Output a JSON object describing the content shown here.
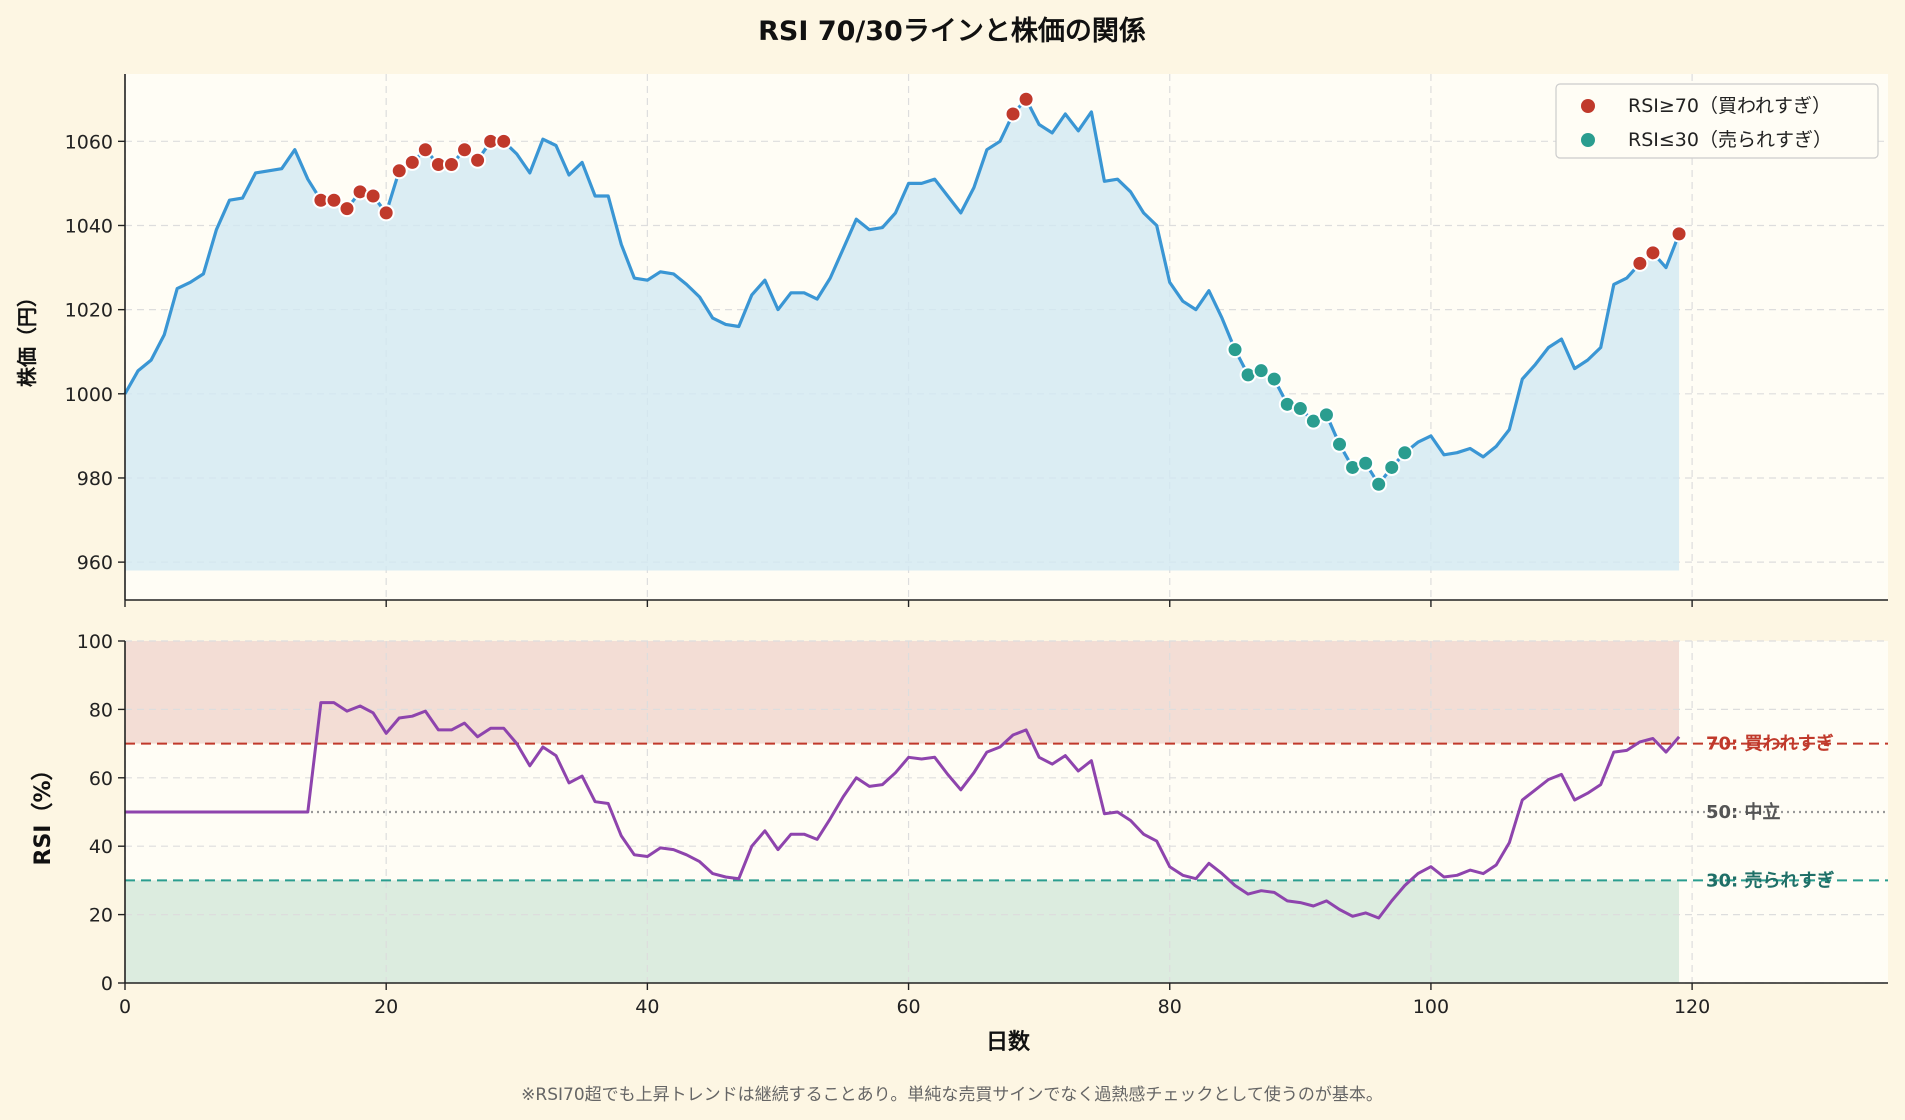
{
  "title": "RSI 70/30ラインと株価の関係",
  "footnote": "※RSI70超でも上昇トレンドは継続することあり。単純な売買サインでなく過熱感チェックとして使うのが基本。",
  "colors": {
    "background": "#fdf6e3",
    "plot_bg": "#fffdf5",
    "price_line": "#3a96d4",
    "price_fill": "#d2e8f2",
    "overbought": "#c0392b",
    "oversold": "#2a9d8f",
    "rsi_line": "#8e44ad",
    "neutral": "#999999",
    "overbought_zone": "#f3ddd5",
    "oversold_zone": "#dcecdf"
  },
  "chart_data": [
    {
      "type": "line",
      "ylabel": "株価（円）",
      "xlim": [
        0,
        135
      ],
      "ylim": [
        951,
        1076
      ],
      "yticks": [
        960,
        980,
        1000,
        1020,
        1040,
        1060
      ],
      "xticks": [
        0,
        20,
        40,
        60,
        80,
        100,
        120
      ],
      "grid": true,
      "fill_baseline": 958,
      "legend": {
        "position": "top-right",
        "entries": [
          "RSI≥70（買われすぎ）",
          "RSI≤30（売られすぎ）"
        ]
      },
      "series": [
        {
          "name": "株価",
          "x_start": 0,
          "values": [
            1000,
            1005.5,
            1008,
            1014,
            1025,
            1026.5,
            1028.5,
            1039,
            1046,
            1046.5,
            1052.5,
            1053,
            1053.5,
            1058,
            1051,
            1046,
            1046,
            1044,
            1048,
            1047,
            1043,
            1053,
            1055,
            1058,
            1054.5,
            1054.5,
            1058,
            1055.5,
            1060,
            1060,
            1057,
            1052.5,
            1060.5,
            1059,
            1052,
            1055,
            1047,
            1047,
            1035.5,
            1027.5,
            1027,
            1029,
            1028.5,
            1026,
            1023,
            1018,
            1016.5,
            1016,
            1023.5,
            1027,
            1020,
            1024,
            1024,
            1022.5,
            1027.5,
            1034.5,
            1041.5,
            1039,
            1039.5,
            1043,
            1050,
            1050,
            1051,
            1047,
            1043,
            1049,
            1058,
            1060,
            1066.5,
            1070,
            1064,
            1062,
            1066.5,
            1062.5,
            1067,
            1050.5,
            1051,
            1048,
            1043,
            1040,
            1026.5,
            1022,
            1020,
            1024.5,
            1018,
            1010.5,
            1004.5,
            1005.5,
            1003.5,
            997.5,
            996.5,
            993.5,
            995,
            988,
            982.5,
            983.5,
            978.5,
            982.5,
            986,
            988.5,
            990,
            985.5,
            986,
            987,
            985,
            987.5,
            991.5,
            1003.5,
            1007,
            1011,
            1013,
            1006,
            1008,
            1011,
            1026,
            1027.5,
            1031,
            1033.5,
            1030,
            1038
          ]
        },
        {
          "name": "RSI≥70（買われすぎ）",
          "points": [
            [
              15,
              1046
            ],
            [
              16,
              1046
            ],
            [
              17,
              1044
            ],
            [
              18,
              1048
            ],
            [
              19,
              1047
            ],
            [
              20,
              1043
            ],
            [
              21,
              1053
            ],
            [
              22,
              1055
            ],
            [
              23,
              1058
            ],
            [
              24,
              1054.5
            ],
            [
              25,
              1054.5
            ],
            [
              26,
              1058
            ],
            [
              27,
              1055.5
            ],
            [
              28,
              1060
            ],
            [
              29,
              1060
            ],
            [
              68,
              1066.5
            ],
            [
              69,
              1070
            ],
            [
              116,
              1031
            ],
            [
              117,
              1033.5
            ],
            [
              119,
              1038
            ]
          ]
        },
        {
          "name": "RSI≤30（売られすぎ）",
          "points": [
            [
              85,
              1010.5
            ],
            [
              86,
              1004.5
            ],
            [
              87,
              1005.5
            ],
            [
              88,
              1003.5
            ],
            [
              89,
              997.5
            ],
            [
              90,
              996.5
            ],
            [
              91,
              993.5
            ],
            [
              92,
              995
            ],
            [
              93,
              988
            ],
            [
              94,
              982.5
            ],
            [
              95,
              983.5
            ],
            [
              96,
              978.5
            ],
            [
              97,
              982.5
            ],
            [
              98,
              986
            ]
          ]
        }
      ]
    },
    {
      "type": "line",
      "xlabel": "日数",
      "ylabel": "RSI（%）",
      "xlim": [
        0,
        135
      ],
      "ylim": [
        0,
        100
      ],
      "yticks": [
        0,
        20,
        40,
        60,
        80,
        100
      ],
      "xticks": [
        0,
        20,
        40,
        60,
        80,
        100,
        120
      ],
      "grid": true,
      "zones": {
        "overbought": [
          70,
          100
        ],
        "oversold": [
          0,
          30
        ],
        "x_end": 119
      },
      "reference_lines": [
        {
          "value": 70,
          "label": "70: 買われすぎ",
          "style": "dashed"
        },
        {
          "value": 50,
          "label": "50: 中立",
          "style": "dotted"
        },
        {
          "value": 30,
          "label": "30: 売られすぎ",
          "style": "dashed"
        }
      ],
      "series": [
        {
          "name": "RSI",
          "x_start": 0,
          "values": [
            50,
            50,
            50,
            50,
            50,
            50,
            50,
            50,
            50,
            50,
            50,
            50,
            50,
            50,
            50,
            82,
            82,
            79.5,
            81,
            79,
            73,
            77.5,
            78,
            79.5,
            74,
            74,
            76,
            72,
            74.5,
            74.5,
            70,
            63.5,
            69,
            66.5,
            58.5,
            60.5,
            53,
            52.5,
            43,
            37.5,
            37,
            39.5,
            39,
            37.5,
            35.5,
            32,
            31,
            30.5,
            40,
            44.5,
            39,
            43.5,
            43.5,
            42,
            48,
            54.5,
            60,
            57.5,
            58,
            61.5,
            66,
            65.5,
            66,
            61,
            56.5,
            61.5,
            67.5,
            69,
            72.5,
            74,
            66,
            64,
            66.5,
            62,
            65,
            49.5,
            50,
            47.5,
            43.5,
            41.5,
            34,
            31.5,
            30.5,
            35,
            32,
            28.5,
            26,
            27,
            26.5,
            24,
            23.5,
            22.5,
            24,
            21.5,
            19.5,
            20.5,
            19,
            24,
            28.5,
            32,
            34,
            31,
            31.5,
            33,
            32,
            34.5,
            41,
            53.5,
            56.5,
            59.5,
            61,
            53.5,
            55.5,
            58,
            67.5,
            68,
            70.5,
            71.5,
            67.5,
            72
          ]
        }
      ]
    }
  ]
}
